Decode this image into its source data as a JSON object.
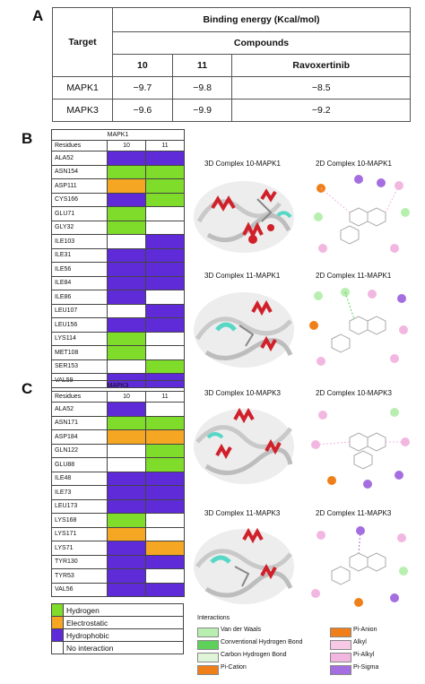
{
  "panels": {
    "a": "A",
    "b": "B",
    "c": "C"
  },
  "energy_table": {
    "target_header": "Target",
    "binding_header": "Binding energy (Kcal/mol)",
    "compounds_header": "Compounds",
    "columns": [
      "10",
      "11",
      "Ravoxertinib"
    ],
    "rows": [
      {
        "target": "MAPK1",
        "values": [
          "−9.7",
          "−9.8",
          "−8.5"
        ]
      },
      {
        "target": "MAPK3",
        "values": [
          "−9.6",
          "−9.9",
          "−9.2"
        ]
      }
    ]
  },
  "mapk1_table": {
    "title": "MAPK1",
    "headers": [
      "Residues",
      "10",
      "11"
    ],
    "rows": [
      {
        "residue": "ALA52",
        "c10": "p",
        "c11": "p"
      },
      {
        "residue": "ASN154",
        "c10": "h",
        "c11": "h"
      },
      {
        "residue": "ASP111",
        "c10": "e",
        "c11": "h"
      },
      {
        "residue": "CYS166",
        "c10": "p",
        "c11": "h"
      },
      {
        "residue": "GLU71",
        "c10": "h",
        "c11": "n"
      },
      {
        "residue": "GLY32",
        "c10": "h",
        "c11": "n"
      },
      {
        "residue": "ILE103",
        "c10": "n",
        "c11": "p"
      },
      {
        "residue": "ILE31",
        "c10": "p",
        "c11": "p"
      },
      {
        "residue": "ILE56",
        "c10": "p",
        "c11": "p"
      },
      {
        "residue": "ILE84",
        "c10": "p",
        "c11": "p"
      },
      {
        "residue": "ILE86",
        "c10": "p",
        "c11": "n"
      },
      {
        "residue": "LEU107",
        "c10": "n",
        "c11": "p"
      },
      {
        "residue": "LEU156",
        "c10": "p",
        "c11": "p"
      },
      {
        "residue": "LYS114",
        "c10": "h",
        "c11": "n"
      },
      {
        "residue": "MET108",
        "c10": "h",
        "c11": "n"
      },
      {
        "residue": "SER153",
        "c10": "n",
        "c11": "h"
      },
      {
        "residue": "VAL59",
        "c10": "p",
        "c11": "p"
      }
    ]
  },
  "mapk3_table": {
    "title": "MAPK3",
    "headers": [
      "Residues",
      "10",
      "11"
    ],
    "rows": [
      {
        "residue": "ALA52",
        "c10": "p",
        "c11": "n"
      },
      {
        "residue": "ASN171",
        "c10": "h",
        "c11": "h"
      },
      {
        "residue": "ASP184",
        "c10": "e",
        "c11": "e"
      },
      {
        "residue": "GLN122",
        "c10": "n",
        "c11": "h"
      },
      {
        "residue": "GLU88",
        "c10": "n",
        "c11": "h"
      },
      {
        "residue": "ILE48",
        "c10": "p",
        "c11": "p"
      },
      {
        "residue": "ILE73",
        "c10": "p",
        "c11": "p"
      },
      {
        "residue": "LEU173",
        "c10": "p",
        "c11": "p"
      },
      {
        "residue": "LYS168",
        "c10": "h",
        "c11": "n"
      },
      {
        "residue": "LYS171",
        "c10": "e",
        "c11": "n"
      },
      {
        "residue": "LYS71",
        "c10": "p",
        "c11": "e"
      },
      {
        "residue": "TYR130",
        "c10": "p",
        "c11": "p"
      },
      {
        "residue": "TYR53",
        "c10": "p",
        "c11": "n"
      },
      {
        "residue": "VAL56",
        "c10": "p",
        "c11": "p"
      }
    ]
  },
  "captions": {
    "c1": "3D Complex 10-MAPK1",
    "c2": "2D Complex 10-MAPK1",
    "c3": "3D Complex 11-MAPK1",
    "c4": "2D Complex 11-MAPK1",
    "c5": "3D Complex 10-MAPK3",
    "c6": "2D Complex 10-MAPK3",
    "c7": "3D Complex 11-MAPK3",
    "c8": "2D Complex 11-MAPK3"
  },
  "residue_legend": [
    {
      "label": "Hydrogen",
      "color": "#7fdc2a"
    },
    {
      "label": "Electrostatic",
      "color": "#f5a623"
    },
    {
      "label": "Hydrophobic",
      "color": "#5f2bd9"
    },
    {
      "label": "No interaction",
      "color": "#ffffff"
    }
  ],
  "interactions_legend": {
    "title": "Interactions",
    "items": [
      {
        "label": "Van der Waals",
        "color": "#b8efb0"
      },
      {
        "label": "Conventional Hydrogen Bond",
        "color": "#5ed15a"
      },
      {
        "label": "Carbon Hydrogen Bond",
        "color": "#dff5d9"
      },
      {
        "label": "Pi-Cation",
        "color": "#f07f1a"
      },
      {
        "label": "Pi-Anion",
        "color": "#f07f1a"
      },
      {
        "label": "Alkyl",
        "color": "#f7c9e6"
      },
      {
        "label": "Pi-Alkyl",
        "color": "#f2b7e0"
      },
      {
        "label": "Pi-Sigma",
        "color": "#a46ee0"
      }
    ]
  },
  "colors": {
    "hydrogen": "#7fdc2a",
    "electrostatic": "#f5a623",
    "hydrophobic": "#5f2bd9",
    "none": "#ffffff"
  }
}
